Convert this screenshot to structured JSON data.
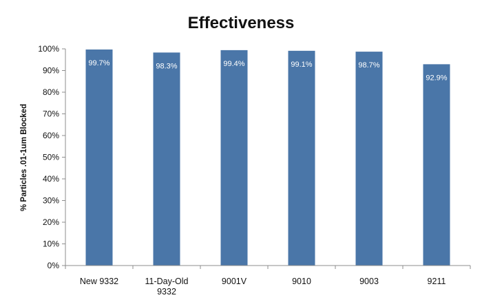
{
  "chart_data": {
    "type": "bar",
    "title": "Effectiveness",
    "xlabel": "",
    "ylabel": "% Particles .01-1um Blocked",
    "categories": [
      [
        "New 9332"
      ],
      [
        "11-Day-Old",
        "9332"
      ],
      [
        "9001V"
      ],
      [
        "9010"
      ],
      [
        "9003"
      ],
      [
        "9211"
      ]
    ],
    "values": [
      99.7,
      98.3,
      99.4,
      99.1,
      98.7,
      92.9
    ],
    "data_labels": [
      "99.7%",
      "98.3%",
      "99.4%",
      "99.1%",
      "98.7%",
      "92.9%"
    ],
    "yticks": [
      "0%",
      "10%",
      "20%",
      "30%",
      "40%",
      "50%",
      "60%",
      "70%",
      "80%",
      "90%",
      "100%"
    ],
    "ylim": [
      0,
      100
    ],
    "grid": false,
    "legend": "none",
    "colors": {
      "bar": "#4a76a8",
      "axis": "#8c8c8c",
      "text": "#111111",
      "label": "#ffffff"
    }
  }
}
